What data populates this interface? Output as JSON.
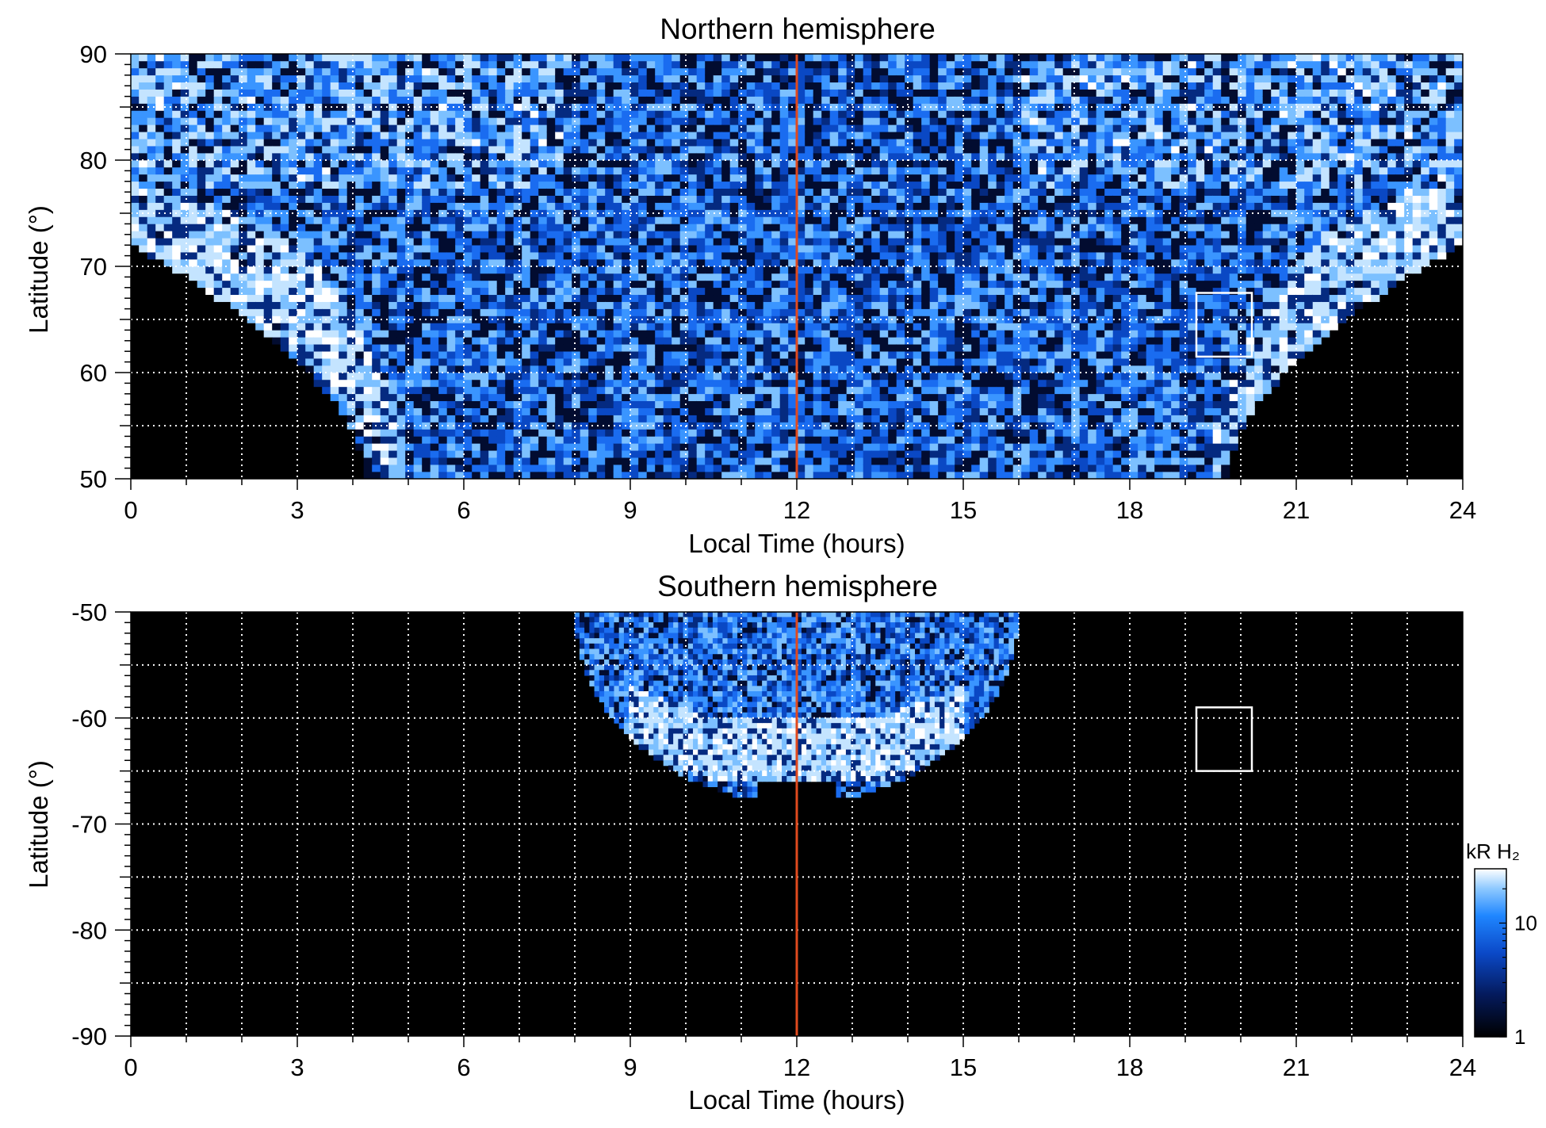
{
  "colors": {
    "background": "#000000",
    "auroral_high": "#f2faff",
    "auroral_mid": "#4aa8ff",
    "auroral_low": "#0a3aa0",
    "noon_line": "#e04a1e",
    "grid": "#ffffff"
  },
  "chart_data": [
    {
      "type": "heatmap",
      "title": "Northern hemisphere",
      "xlabel": "Local Time (hours)",
      "ylabel": "Latitude (°)",
      "xlim": [
        0,
        24
      ],
      "ylim": [
        50,
        90
      ],
      "xticks": [
        "0",
        "3",
        "6",
        "9",
        "12",
        "15",
        "18",
        "21",
        "24"
      ],
      "yticks": [
        "50",
        "60",
        "70",
        "80",
        "90"
      ],
      "grid": true,
      "noon_line_lt": 12,
      "box": {
        "lt": [
          19.2,
          20.2
        ],
        "lat": [
          61.5,
          67.5
        ]
      },
      "coverage": "auroral emission across the polar cap; unobserved (black) regions at low latitudes near midnight",
      "main_oval": [
        {
          "lt": 0,
          "lat": 73
        },
        {
          "lt": 2,
          "lat": 70
        },
        {
          "lt": 3,
          "lat": 67
        },
        {
          "lt": 4,
          "lat": 61
        },
        {
          "lt": 5,
          "lat": 50
        },
        {
          "lt": 19.5,
          "lat": 50
        },
        {
          "lt": 20.5,
          "lat": 62
        },
        {
          "lt": 21.5,
          "lat": 68
        },
        {
          "lt": 23,
          "lat": 72
        },
        {
          "lt": 24,
          "lat": 73
        }
      ]
    },
    {
      "type": "heatmap",
      "title": "Southern hemisphere",
      "xlabel": "Local Time (hours)",
      "ylabel": "Latitude (°)",
      "xlim": [
        0,
        24
      ],
      "ylim": [
        -90,
        -50
      ],
      "xticks": [
        "0",
        "3",
        "6",
        "9",
        "12",
        "15",
        "18",
        "21",
        "24"
      ],
      "yticks": [
        "-50",
        "-60",
        "-70",
        "-80",
        "-90"
      ],
      "grid": true,
      "noon_line_lt": 12,
      "box": {
        "lt": [
          19.2,
          20.2
        ],
        "lat": [
          -65,
          -59
        ]
      },
      "coverage": "emission observed only near local noon (about 8 to 16 LT, -50 to -68 latitude)",
      "main_oval": [
        {
          "lt": 9,
          "lat": -60
        },
        {
          "lt": 10.5,
          "lat": -63
        },
        {
          "lt": 12,
          "lat": -63
        },
        {
          "lt": 13.5,
          "lat": -63
        },
        {
          "lt": 15,
          "lat": -60
        }
      ]
    }
  ],
  "colorbar": {
    "title": "kR H₂",
    "scale": "log",
    "range": [
      1,
      30
    ],
    "tick_labels": [
      "1",
      "10"
    ],
    "tick_values": [
      1,
      10
    ]
  }
}
